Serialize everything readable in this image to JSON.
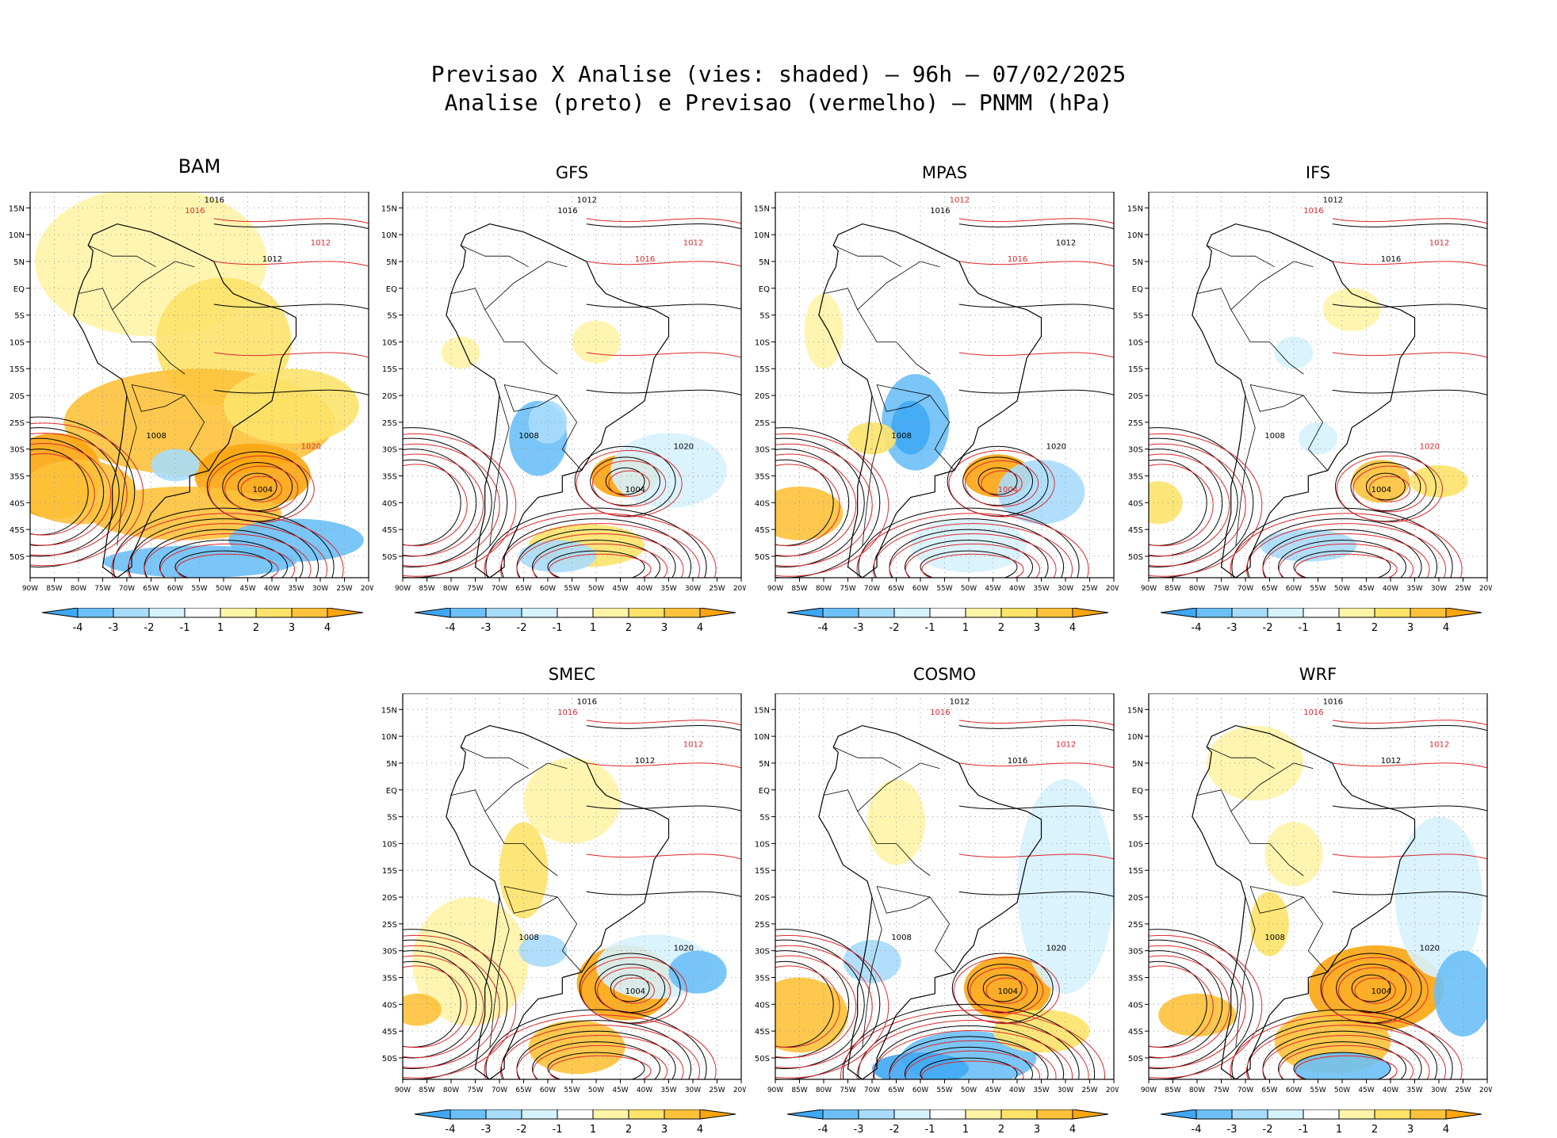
{
  "figure": {
    "title_line1": "Previsao X Analise (vies: shaded) – 96h – 07/02/2025",
    "title_line2": "Analise (preto) e Previsao (vermelho) – PNMM (hPa)"
  },
  "axes": {
    "lat_labels": [
      "15N",
      "10N",
      "5N",
      "EQ",
      "5S",
      "10S",
      "15S",
      "20S",
      "25S",
      "30S",
      "35S",
      "40S",
      "45S",
      "50S"
    ],
    "lon_labels": [
      "90W",
      "85W",
      "80W",
      "75W",
      "70W",
      "65W",
      "60W",
      "55W",
      "50W",
      "45W",
      "40W",
      "35W",
      "30W",
      "25W",
      "20W"
    ]
  },
  "colorbar": {
    "labels": [
      "-4",
      "-3",
      "-2",
      "-1",
      "1",
      "2",
      "3",
      "4"
    ],
    "colors": [
      "#3fa8f5",
      "#6cc0f7",
      "#a8dcfb",
      "#d6f2fd",
      "#ffffff",
      "#fff4a8",
      "#fde36a",
      "#fdc23a",
      "#fca50f"
    ]
  },
  "colors": {
    "analysis_contour": "#000000",
    "forecast_contour": "#e0262b",
    "grid": "#9a9a9a"
  },
  "panels": [
    {
      "id": "bam",
      "name": "BAM",
      "labels": [
        {
          "t": "1016",
          "c": "k"
        },
        {
          "t": "1016",
          "c": "r"
        },
        {
          "t": "1012",
          "c": "k"
        },
        {
          "t": "1012",
          "c": "r"
        },
        {
          "t": "1008",
          "c": "k"
        },
        {
          "t": "1004",
          "c": "k"
        },
        {
          "t": "1020",
          "c": "r"
        }
      ]
    },
    {
      "id": "gfs",
      "name": "GFS",
      "labels": [
        {
          "t": "1012",
          "c": "k"
        },
        {
          "t": "1016",
          "c": "k"
        },
        {
          "t": "1016",
          "c": "r"
        },
        {
          "t": "1012",
          "c": "r"
        },
        {
          "t": "1008",
          "c": "k"
        },
        {
          "t": "1004",
          "c": "k"
        },
        {
          "t": "1020",
          "c": "k"
        }
      ]
    },
    {
      "id": "mpas",
      "name": "MPAS",
      "labels": [
        {
          "t": "1012",
          "c": "r"
        },
        {
          "t": "1016",
          "c": "k"
        },
        {
          "t": "1016",
          "c": "r"
        },
        {
          "t": "1012",
          "c": "k"
        },
        {
          "t": "1008",
          "c": "k"
        },
        {
          "t": "1004",
          "c": "r"
        },
        {
          "t": "1020",
          "c": "k"
        }
      ]
    },
    {
      "id": "ifs",
      "name": "IFS",
      "labels": [
        {
          "t": "1012",
          "c": "k"
        },
        {
          "t": "1016",
          "c": "r"
        },
        {
          "t": "1016",
          "c": "k"
        },
        {
          "t": "1012",
          "c": "r"
        },
        {
          "t": "1008",
          "c": "k"
        },
        {
          "t": "1004",
          "c": "k"
        },
        {
          "t": "1020",
          "c": "r"
        }
      ]
    },
    {
      "id": "smec",
      "name": "SMEC",
      "labels": [
        {
          "t": "1016",
          "c": "k"
        },
        {
          "t": "1016",
          "c": "r"
        },
        {
          "t": "1012",
          "c": "k"
        },
        {
          "t": "1012",
          "c": "r"
        },
        {
          "t": "1008",
          "c": "k"
        },
        {
          "t": "1004",
          "c": "k"
        },
        {
          "t": "1020",
          "c": "k"
        }
      ]
    },
    {
      "id": "cosmo",
      "name": "COSMO",
      "labels": [
        {
          "t": "1012",
          "c": "k"
        },
        {
          "t": "1016",
          "c": "r"
        },
        {
          "t": "1016",
          "c": "k"
        },
        {
          "t": "1012",
          "c": "r"
        },
        {
          "t": "1008",
          "c": "k"
        },
        {
          "t": "1004",
          "c": "k"
        },
        {
          "t": "1020",
          "c": "k"
        }
      ]
    },
    {
      "id": "wrf",
      "name": "WRF",
      "labels": [
        {
          "t": "1016",
          "c": "k"
        },
        {
          "t": "1016",
          "c": "r"
        },
        {
          "t": "1012",
          "c": "k"
        },
        {
          "t": "1012",
          "c": "r"
        },
        {
          "t": "1008",
          "c": "k"
        },
        {
          "t": "1004",
          "c": "k"
        },
        {
          "t": "1020",
          "c": "k"
        }
      ]
    }
  ]
}
